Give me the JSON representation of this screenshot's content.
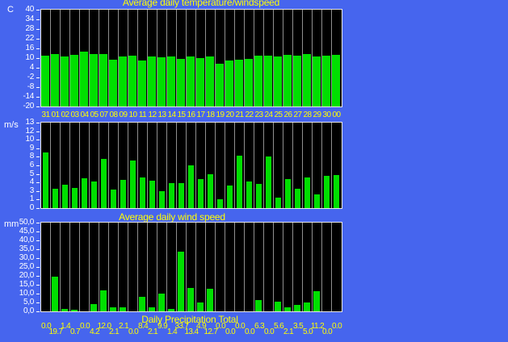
{
  "window": {
    "background_color": "#4665ee",
    "plot_background": "#000000",
    "bar_color": "#00df00",
    "axis_text_color": "#ffffff",
    "label_text_color": "#ffff00",
    "column_separator_color": "#8f8f8f",
    "plot_border_color": "#e9e9e9"
  },
  "chart_data": [
    {
      "type": "bar",
      "title": "Average daily temperature/windspeed",
      "unit": "C",
      "ylim": [
        -20,
        40
      ],
      "yticks": [
        "40",
        "34",
        "28",
        "22",
        "16",
        "10",
        "4",
        "-2",
        "-8",
        "-14",
        "-20"
      ],
      "grid": "column-separators",
      "legend": "none",
      "categories": [
        "31",
        "01",
        "02",
        "03",
        "04",
        "05",
        "07",
        "08",
        "09",
        "10",
        "11",
        "12",
        "13",
        "14",
        "15",
        "16",
        "17",
        "18",
        "19",
        "20",
        "21",
        "22",
        "23",
        "24",
        "25",
        "26",
        "27",
        "28",
        "29",
        "30",
        "00"
      ],
      "values": [
        11.7,
        12.7,
        11.0,
        12.0,
        13.8,
        12.5,
        12.7,
        9.0,
        11.2,
        11.5,
        8.7,
        11.0,
        10.3,
        10.8,
        9.3,
        10.8,
        10.0,
        11.0,
        6.7,
        8.5,
        9.2,
        9.5,
        11.3,
        11.3,
        11.0,
        11.8,
        11.7,
        12.5,
        11.0,
        11.7,
        12.0
      ]
    },
    {
      "type": "bar",
      "title": "Average daily wind speed",
      "unit": "m/s",
      "ylim": [
        0,
        13
      ],
      "yticks": [
        "13",
        "12",
        "10",
        "9",
        "8",
        "6",
        "5",
        "4",
        "3",
        "1",
        "0"
      ],
      "grid": "column-separators",
      "legend": "none",
      "categories": [
        "31",
        "01",
        "02",
        "03",
        "04",
        "05",
        "07",
        "08",
        "09",
        "10",
        "11",
        "12",
        "13",
        "14",
        "15",
        "16",
        "17",
        "18",
        "19",
        "20",
        "21",
        "22",
        "23",
        "24",
        "25",
        "26",
        "27",
        "28",
        "29",
        "30",
        "00"
      ],
      "values": [
        8.5,
        2.9,
        3.5,
        3.1,
        4.5,
        4.1,
        7.5,
        2.8,
        4.3,
        7.2,
        4.7,
        4.2,
        2.6,
        3.8,
        3.8,
        6.5,
        4.4,
        5.1,
        1.4,
        3.4,
        8.0,
        4.1,
        3.7,
        7.9,
        1.6,
        4.4,
        2.9,
        4.6,
        2.1,
        4.9,
        5.0
      ]
    },
    {
      "type": "bar",
      "title": "Daily Precipitation Total",
      "unit": "mm",
      "ylim": [
        0,
        50
      ],
      "yticks": [
        "50,0",
        "45,0",
        "40,0",
        "35,0",
        "30,0",
        "25,0",
        "20,0",
        "15,0",
        "10,0",
        "5,0",
        "0,0"
      ],
      "grid": "column-separators",
      "legend": "none",
      "categories": [
        "31",
        "01",
        "02",
        "03",
        "04",
        "05",
        "07",
        "08",
        "09",
        "10",
        "11",
        "12",
        "13",
        "14",
        "15",
        "16",
        "17",
        "18",
        "19",
        "20",
        "21",
        "22",
        "23",
        "24",
        "25",
        "26",
        "27",
        "28",
        "29",
        "30",
        "00"
      ],
      "values": [
        0.0,
        19.7,
        1.4,
        0.7,
        0.0,
        4.2,
        12.0,
        2.1,
        2.1,
        0.0,
        8.4,
        2.1,
        9.9,
        1.4,
        33.7,
        13.4,
        4.9,
        12.7,
        0.0,
        0.0,
        0.0,
        0.0,
        6.3,
        0.0,
        5.6,
        2.1,
        3.5,
        5.0,
        11.2,
        0.0,
        0.0
      ],
      "value_labels": [
        "0.0",
        "19.7",
        "1.4",
        "0.7",
        "0.0",
        "4.2",
        "12.0",
        "2.1",
        "2.1",
        "0.0",
        "8.4",
        "2.1",
        "9.9",
        "1.4",
        "33.7",
        "13.4",
        "4.9",
        "12.7",
        "0.0",
        "0.0",
        "0.0",
        "0.0",
        "6.3",
        "0.0",
        "5.6",
        "2.1",
        "3.5",
        "5.0",
        "11.2",
        "0.0",
        "0.0"
      ]
    }
  ]
}
